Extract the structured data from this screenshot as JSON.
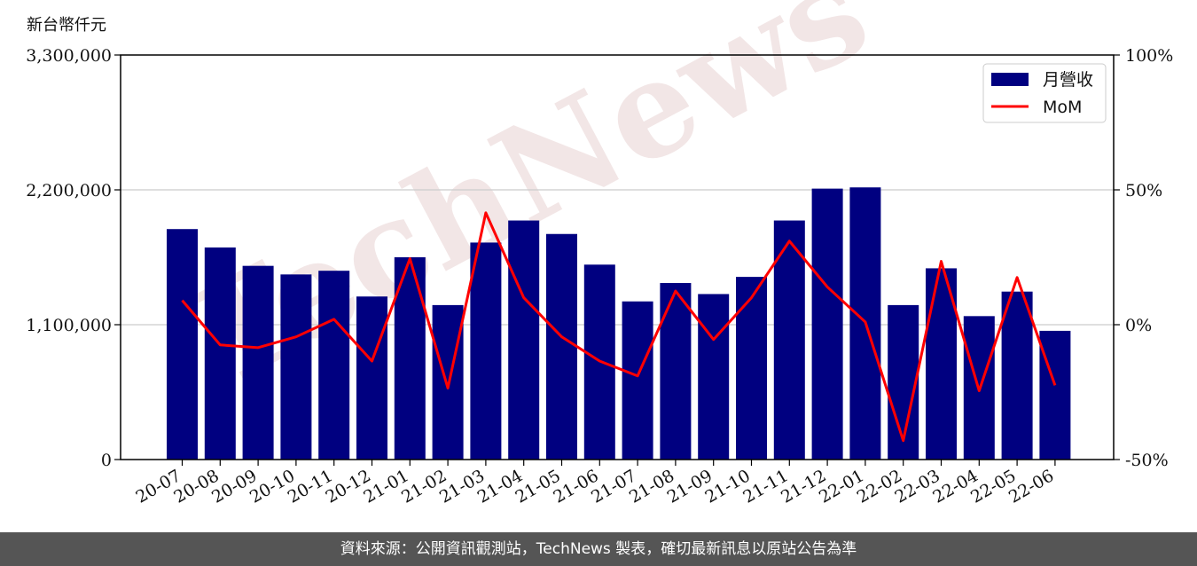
{
  "chart_data": {
    "type": "bar",
    "unit_label": "新台幣仟元",
    "categories": [
      "20-07",
      "20-08",
      "20-09",
      "20-10",
      "20-11",
      "20-12",
      "21-01",
      "21-02",
      "21-03",
      "21-04",
      "21-05",
      "21-06",
      "21-07",
      "21-08",
      "21-09",
      "21-10",
      "21-11",
      "21-12",
      "22-01",
      "22-02",
      "22-03",
      "22-04",
      "22-05",
      "22-06"
    ],
    "series": [
      {
        "name": "月營收",
        "type": "bar",
        "axis": "left",
        "color": "#000080",
        "values": [
          1880000,
          1730000,
          1580000,
          1510000,
          1540000,
          1330000,
          1650000,
          1260000,
          1770000,
          1950000,
          1840000,
          1590000,
          1290000,
          1440000,
          1350000,
          1490000,
          1950000,
          2210000,
          2220000,
          1260000,
          1560000,
          1170000,
          1370000,
          1050000
        ]
      },
      {
        "name": "MoM",
        "type": "line",
        "axis": "right",
        "color": "#ff0000",
        "values": [
          9,
          -7.5,
          -8.5,
          -4.5,
          2,
          -13.5,
          24.5,
          -23.5,
          41.5,
          10,
          -4.5,
          -13.5,
          -19,
          12.5,
          -5.5,
          10,
          31,
          14,
          1,
          -43,
          23.5,
          -24.5,
          17.5,
          -22.5
        ]
      }
    ],
    "y_left": {
      "ylim": [
        0,
        3300000
      ],
      "ticks": [
        0,
        1100000,
        2200000,
        3300000
      ],
      "tick_labels": [
        "0",
        "1,100,000",
        "2,200,000",
        "3,300,000"
      ]
    },
    "y_right": {
      "ylim": [
        -50,
        100
      ],
      "ticks": [
        -50,
        0,
        50,
        100
      ],
      "tick_labels": [
        "-50%",
        "0%",
        "50%",
        "100%"
      ]
    },
    "grid": "horizontal",
    "legend": "top-right",
    "watermark": "TechNews"
  },
  "footer": {
    "text": "資料來源：公開資訊觀測站，TechNews 製表，確切最新訊息以原站公告為準"
  }
}
